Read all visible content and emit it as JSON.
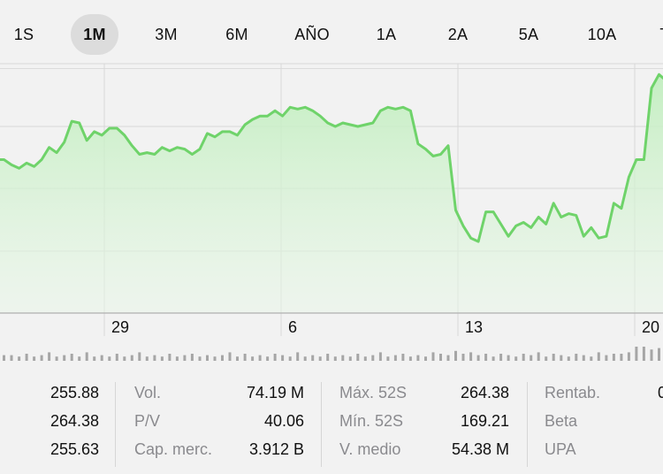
{
  "range_tabs": [
    "1S",
    "1M",
    "3M",
    "6M",
    "AÑO",
    "1A",
    "2A",
    "5A",
    "10A",
    "T"
  ],
  "active_tab": "1M",
  "colors": {
    "line": "#6fd36a",
    "fill_top": "#bfeebc",
    "grid": "#d8d8d8",
    "volume": "#a6a6a6",
    "background": "#f2f2f2"
  },
  "chart_data": {
    "type": "area",
    "x_ticks": [
      "29",
      "6",
      "13",
      "20"
    ],
    "ylim": [
      250.7,
      265.0
    ],
    "values": [
      259.5,
      259.5,
      259.2,
      259.0,
      259.3,
      259.1,
      259.5,
      260.2,
      259.9,
      260.5,
      261.7,
      261.6,
      260.6,
      261.1,
      260.9,
      261.3,
      261.3,
      260.9,
      260.3,
      259.8,
      259.9,
      259.8,
      260.2,
      260.0,
      260.2,
      260.1,
      259.8,
      260.1,
      261.0,
      260.8,
      261.1,
      261.1,
      260.9,
      261.5,
      261.8,
      262.0,
      262.0,
      262.3,
      262.0,
      262.5,
      262.4,
      262.5,
      262.3,
      262.0,
      261.6,
      261.4,
      261.6,
      261.5,
      261.4,
      261.5,
      261.6,
      262.3,
      262.5,
      262.4,
      262.5,
      262.3,
      260.4,
      260.1,
      259.7,
      259.8,
      260.3,
      256.6,
      255.7,
      255.0,
      254.8,
      256.5,
      256.5,
      255.8,
      255.1,
      255.7,
      255.9,
      255.6,
      256.2,
      255.8,
      257.0,
      256.2,
      256.4,
      256.3,
      255.1,
      255.6,
      255.0,
      255.1,
      257.0,
      256.7,
      258.5,
      259.5,
      259.5,
      263.6,
      264.38,
      264.0
    ],
    "volume": [
      0.5,
      0.4,
      0.4,
      0.3,
      0.5,
      0.3,
      0.4,
      0.6,
      0.3,
      0.4,
      0.5,
      0.3,
      0.6,
      0.3,
      0.4,
      0.3,
      0.5,
      0.3,
      0.4,
      0.6,
      0.3,
      0.4,
      0.3,
      0.5,
      0.3,
      0.4,
      0.5,
      0.3,
      0.4,
      0.3,
      0.4,
      0.6,
      0.3,
      0.5,
      0.3,
      0.4,
      0.3,
      0.5,
      0.4,
      0.3,
      0.6,
      0.3,
      0.4,
      0.3,
      0.5,
      0.3,
      0.4,
      0.3,
      0.5,
      0.3,
      0.4,
      0.6,
      0.3,
      0.4,
      0.5,
      0.3,
      0.4,
      0.3,
      0.6,
      0.5,
      0.4,
      0.7,
      0.5,
      0.6,
      0.4,
      0.5,
      0.3,
      0.5,
      0.4,
      0.3,
      0.5,
      0.4,
      0.6,
      0.3,
      0.5,
      0.4,
      0.3,
      0.5,
      0.4,
      0.3,
      0.6,
      0.4,
      0.5,
      0.5,
      0.6,
      1.0,
      1.0,
      0.8,
      0.9,
      0.4
    ]
  },
  "stats": {
    "col1": [
      {
        "label": "",
        "value": "255.88"
      },
      {
        "label": "",
        "value": "264.38"
      },
      {
        "label": "",
        "value": "255.63"
      }
    ],
    "col2": [
      {
        "label": "Vol.",
        "value": "74.19 M"
      },
      {
        "label": "P/V",
        "value": "40.06"
      },
      {
        "label": "Cap. merc.",
        "value": "3.912 B"
      }
    ],
    "col3": [
      {
        "label": "Máx. 52S",
        "value": "264.38"
      },
      {
        "label": "Mín. 52S",
        "value": "169.21"
      },
      {
        "label": "V. medio",
        "value": "54.38 M"
      }
    ],
    "col4": [
      {
        "label": "Rentab.",
        "value": "0"
      },
      {
        "label": "Beta",
        "value": ""
      },
      {
        "label": "UPA",
        "value": ""
      }
    ]
  }
}
